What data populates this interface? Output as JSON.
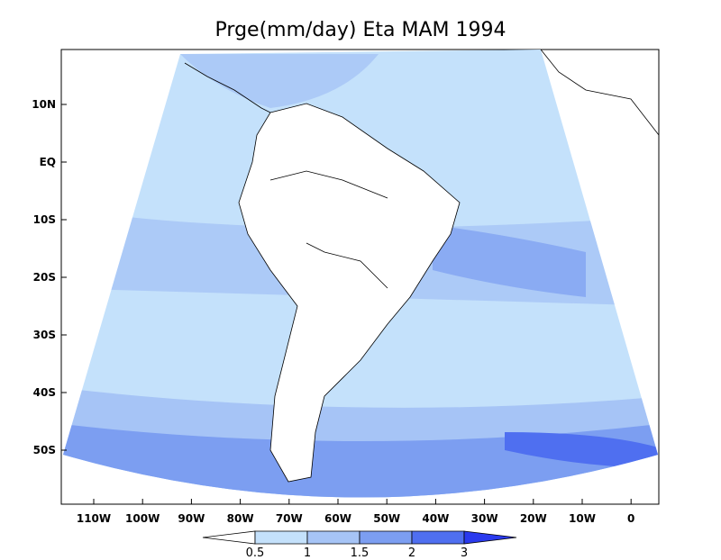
{
  "map": {
    "title": "Prge(mm/day) Eta MAM 1994",
    "lat_labels": [
      "10N",
      "EQ",
      "10S",
      "20S",
      "30S",
      "40S",
      "50S"
    ],
    "lon_labels": [
      "110W",
      "100W",
      "90W",
      "80W",
      "70W",
      "60W",
      "50W",
      "40W",
      "30W",
      "20W",
      "10W",
      "0"
    ],
    "colorbar": {
      "labels": [
        "0.5",
        "1",
        "1.5",
        "2",
        "3"
      ],
      "colors": [
        "#ffffff",
        "#c4e1fb",
        "#a6c4f6",
        "#7c9ef1",
        "#4f6ff0",
        "#2a3aee"
      ]
    }
  }
}
